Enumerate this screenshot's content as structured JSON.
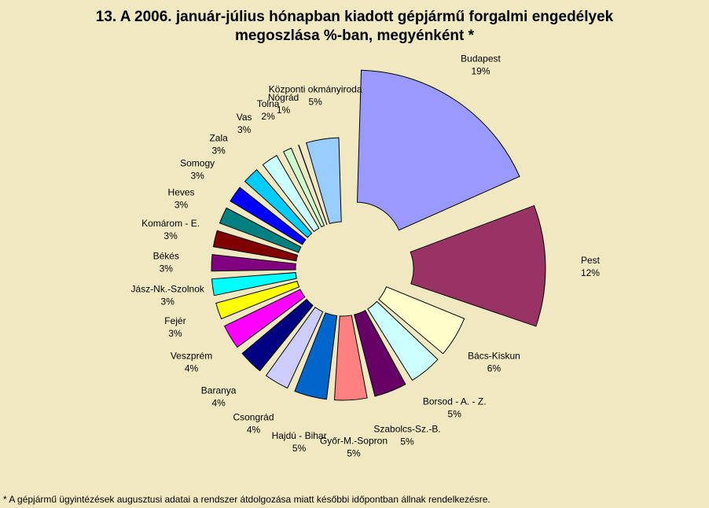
{
  "chart_data": {
    "type": "pie",
    "title_lines": [
      "13. A  2006. január-július hónapban kiadott gépjármű forgalmi engedélyek",
      "megoszlása %-ban, megyénként *"
    ],
    "slices": [
      {
        "label": "Budapest",
        "value_label": "19%",
        "value": 19,
        "color": "#9999FF"
      },
      {
        "label": "Pest",
        "value_label": "12%",
        "value": 12,
        "color": "#993366"
      },
      {
        "label": "Bács-Kiskun",
        "value_label": "6%",
        "value": 6,
        "color": "#FFFFCC"
      },
      {
        "label": "Borsod - A. - Z.",
        "value_label": "5%",
        "value": 5,
        "color": "#CCFFFF"
      },
      {
        "label": "Szabolcs-Sz.-B.",
        "value_label": "5%",
        "value": 5,
        "color": "#660066"
      },
      {
        "label": "Győr-M.-Sopron",
        "value_label": "5%",
        "value": 5,
        "color": "#FF8080"
      },
      {
        "label": "Hajdú - Bihar",
        "value_label": "5%",
        "value": 5,
        "color": "#0066CC"
      },
      {
        "label": "Csongrád",
        "value_label": "4%",
        "value": 4,
        "color": "#CCCCFF"
      },
      {
        "label": "Baranya",
        "value_label": "4%",
        "value": 4,
        "color": "#000080"
      },
      {
        "label": "Veszprém",
        "value_label": "4%",
        "value": 4,
        "color": "#FF00FF"
      },
      {
        "label": "Fejér",
        "value_label": "3%",
        "value": 3,
        "color": "#FFFF00"
      },
      {
        "label": "Jász-Nk.-Szolnok",
        "value_label": "3%",
        "value": 3,
        "color": "#00FFFF"
      },
      {
        "label": "Békés",
        "value_label": "3%",
        "value": 3,
        "color": "#800080"
      },
      {
        "label": "Komárom - E.",
        "value_label": "3%",
        "value": 3,
        "color": "#800000"
      },
      {
        "label": "Heves",
        "value_label": "3%",
        "value": 3,
        "color": "#008080"
      },
      {
        "label": "Somogy",
        "value_label": "3%",
        "value": 3,
        "color": "#0000FF"
      },
      {
        "label": "Zala",
        "value_label": "3%",
        "value": 3,
        "color": "#00CCFF"
      },
      {
        "label": "Vas",
        "value_label": "3%",
        "value": 3,
        "color": "#CCFFFF"
      },
      {
        "label": "Tolna",
        "value_label": "2%",
        "value": 2,
        "color": "#CCFFCC"
      },
      {
        "label": "Nógrád",
        "value_label": "1%",
        "value": 1,
        "color": "#FFFF99"
      },
      {
        "label": "Központi okmányiroda",
        "value_label": "5%",
        "value": 5,
        "color": "#99CCFF"
      }
    ],
    "exploded": true,
    "start_at": "top",
    "direction": "clockwise"
  },
  "footnote": "* A gépjármű ügyintézések augusztusi adatai a rendszer átdolgozása miatt későbbi időpontban állnak rendelkezésre."
}
